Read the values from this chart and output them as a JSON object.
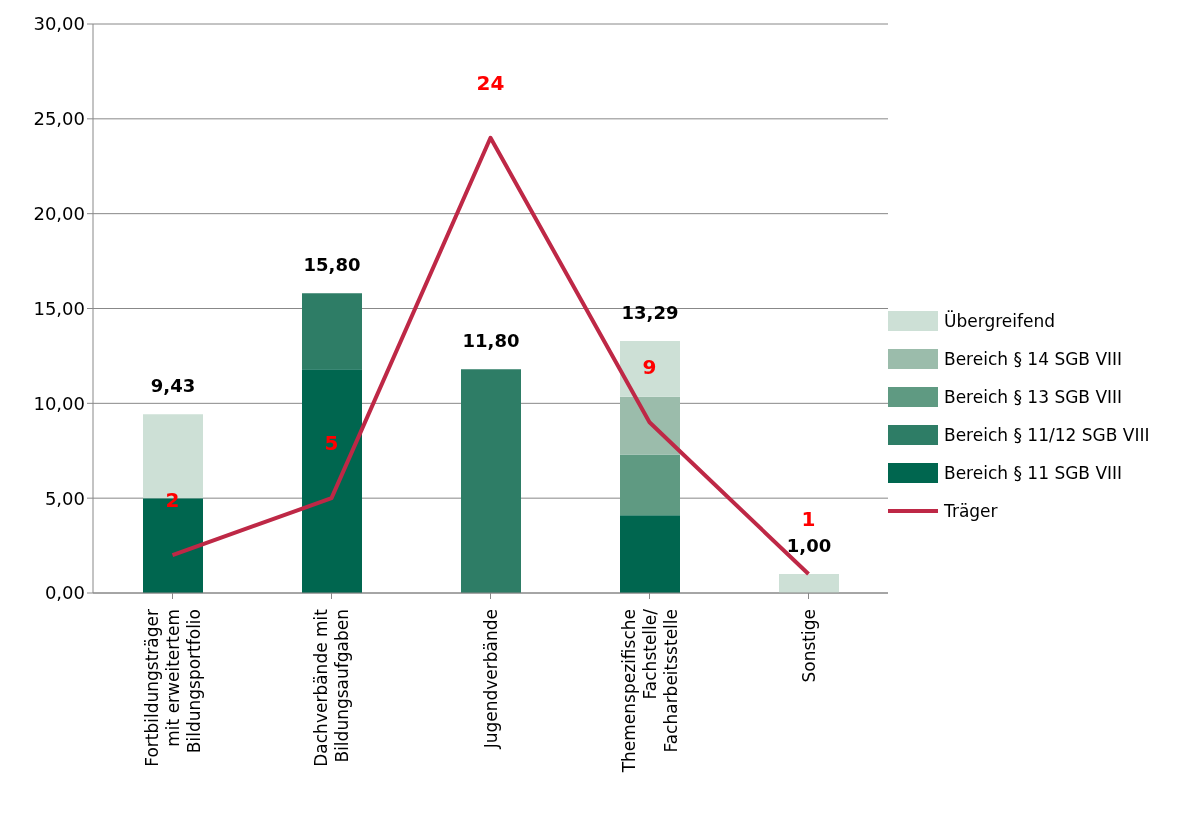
{
  "chart_data": {
    "type": "bar",
    "stacked": true,
    "categories": [
      "Fortbildungsträger\nmit erweitertem\nBildungsportfolio",
      "Dachverbände mit\nBildungsaufgaben",
      "Jugendverbände",
      "Themenspezifische\nFachstelle/\nFacharbeitsstelle",
      "Sonstige"
    ],
    "series": [
      {
        "name": "Bereich § 11 SGB VIII",
        "color": "#00664f",
        "values": [
          5.0,
          11.8,
          null,
          4.1,
          null
        ]
      },
      {
        "name": "Bereich § 11/12 SGB VIII",
        "color": "#2e7d66",
        "values": [
          null,
          4.0,
          11.8,
          null,
          null
        ]
      },
      {
        "name": "Bereich § 13 SGB VIII",
        "color": "#5f9a82",
        "values": [
          null,
          null,
          null,
          3.2,
          null
        ]
      },
      {
        "name": "Bereich § 14 SGB VIII",
        "color": "#9bbcab",
        "values": [
          null,
          null,
          null,
          3.05,
          null
        ]
      },
      {
        "name": "Übergreifend",
        "color": "#cde0d6",
        "values": [
          4.43,
          null,
          null,
          2.94,
          1.0
        ]
      },
      {
        "name": "Träger",
        "type": "line",
        "color": "#be2846",
        "values": [
          2,
          5,
          24,
          9,
          1
        ],
        "value_labels": [
          "2",
          "5",
          "24",
          "9",
          "1"
        ]
      }
    ],
    "totals": [
      "9,43",
      "15,80",
      "11,80",
      "13,29",
      "1,00"
    ],
    "ylim": [
      0,
      30
    ],
    "yticks": [
      {
        "value": 0,
        "label": "0,00"
      },
      {
        "value": 5,
        "label": "5,00"
      },
      {
        "value": 10,
        "label": "10,00"
      },
      {
        "value": 15,
        "label": "15,00"
      },
      {
        "value": 20,
        "label": "20,00"
      },
      {
        "value": 25,
        "label": "25,00"
      },
      {
        "value": 30,
        "label": "30,00"
      }
    ],
    "grid": "y",
    "legend": "right"
  }
}
